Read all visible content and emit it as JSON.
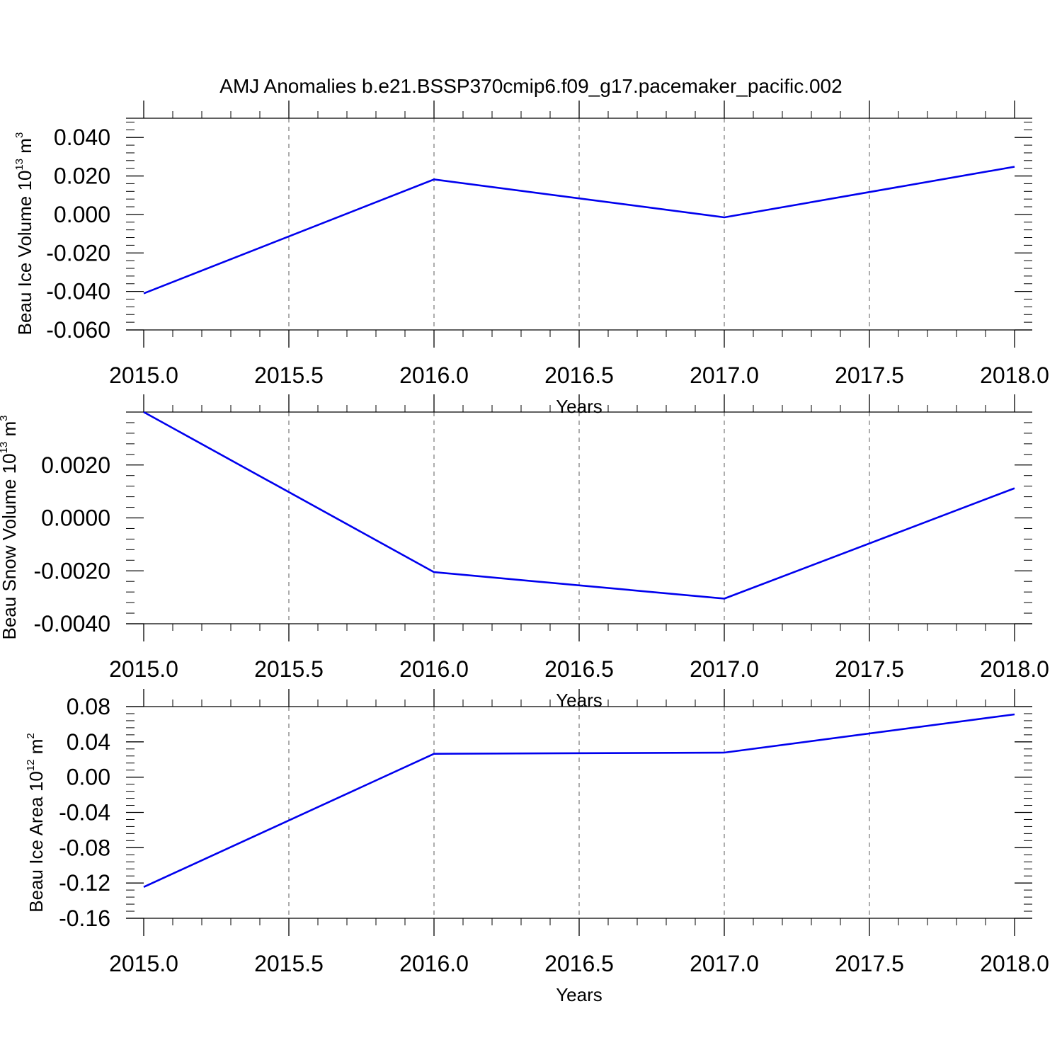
{
  "title": "AMJ Anomalies b.e21.BSSP370cmip6.f09_g17.pacemaker_pacific.002",
  "colors": {
    "series": "#0000ee",
    "axis": "#000000",
    "grid": "#777777"
  },
  "chart_data": [
    {
      "type": "line",
      "xlabel": "Years",
      "ylabel": {
        "text": "Beau Ice Volume 10",
        "exp": "13",
        "unit": " m",
        "unit_exp": "3"
      },
      "xlim": [
        2015.0,
        2018.0
      ],
      "ylim": [
        -0.06,
        0.05
      ],
      "x_ticks": [
        "2015.0",
        "2015.5",
        "2016.0",
        "2016.5",
        "2017.0",
        "2017.5",
        "2018.0"
      ],
      "y_ticks": [
        {
          "v": 0.04,
          "label": "0.040"
        },
        {
          "v": 0.02,
          "label": "0.020"
        },
        {
          "v": 0.0,
          "label": "0.000"
        },
        {
          "v": -0.02,
          "label": "-0.020"
        },
        {
          "v": -0.04,
          "label": "-0.040"
        },
        {
          "v": -0.06,
          "label": "-0.060"
        }
      ],
      "grid": true,
      "x": [
        2015,
        2016,
        2017,
        2018
      ],
      "values": [
        -0.041,
        0.0182,
        -0.0015,
        0.0248
      ]
    },
    {
      "type": "line",
      "xlabel": "Years",
      "ylabel": {
        "text": "Beau Snow Volume 10",
        "exp": "13",
        "unit": " m",
        "unit_exp": "3"
      },
      "xlim": [
        2015.0,
        2018.0
      ],
      "ylim": [
        -0.004,
        0.004
      ],
      "x_ticks": [
        "2015.0",
        "2015.5",
        "2016.0",
        "2016.5",
        "2017.0",
        "2017.5",
        "2018.0"
      ],
      "y_ticks": [
        {
          "v": 0.002,
          "label": "0.0020"
        },
        {
          "v": 0.0,
          "label": "0.0000"
        },
        {
          "v": -0.002,
          "label": "-0.0020"
        },
        {
          "v": -0.004,
          "label": "-0.0040"
        }
      ],
      "grid": true,
      "x": [
        2015,
        2016,
        2017,
        2018
      ],
      "values": [
        0.004,
        -0.00205,
        -0.00305,
        0.00112
      ]
    },
    {
      "type": "line",
      "xlabel": "Years",
      "ylabel": {
        "text": "Beau Ice Area 10",
        "exp": "12",
        "unit": " m",
        "unit_exp": "2"
      },
      "xlim": [
        2015.0,
        2018.0
      ],
      "ylim": [
        -0.16,
        0.08
      ],
      "x_ticks": [
        "2015.0",
        "2015.5",
        "2016.0",
        "2016.5",
        "2017.0",
        "2017.5",
        "2018.0"
      ],
      "y_ticks": [
        {
          "v": 0.08,
          "label": "0.08"
        },
        {
          "v": 0.04,
          "label": "0.04"
        },
        {
          "v": 0.0,
          "label": "0.00"
        },
        {
          "v": -0.04,
          "label": "-0.04"
        },
        {
          "v": -0.08,
          "label": "-0.08"
        },
        {
          "v": -0.12,
          "label": "-0.12"
        },
        {
          "v": -0.16,
          "label": "-0.16"
        }
      ],
      "grid": true,
      "x": [
        2015,
        2016,
        2017,
        2018
      ],
      "values": [
        -0.1245,
        0.0265,
        0.0278,
        0.0712
      ]
    }
  ]
}
